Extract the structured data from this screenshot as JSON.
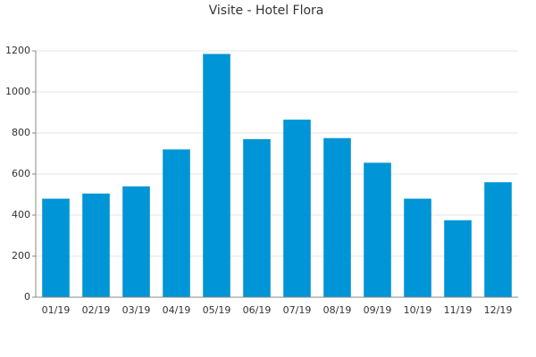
{
  "chart_data": {
    "type": "bar",
    "title": "Visite - Hotel Flora",
    "categories": [
      "01/19",
      "02/19",
      "03/19",
      "04/19",
      "05/19",
      "06/19",
      "07/19",
      "08/19",
      "09/19",
      "10/19",
      "11/19",
      "12/19"
    ],
    "values": [
      480,
      505,
      540,
      720,
      1185,
      770,
      865,
      775,
      655,
      480,
      375,
      560
    ],
    "color": "#0095d6",
    "ylim": [
      0,
      1200
    ],
    "yticks": [
      0,
      200,
      400,
      600,
      800,
      1000,
      1200
    ],
    "grid": true
  }
}
